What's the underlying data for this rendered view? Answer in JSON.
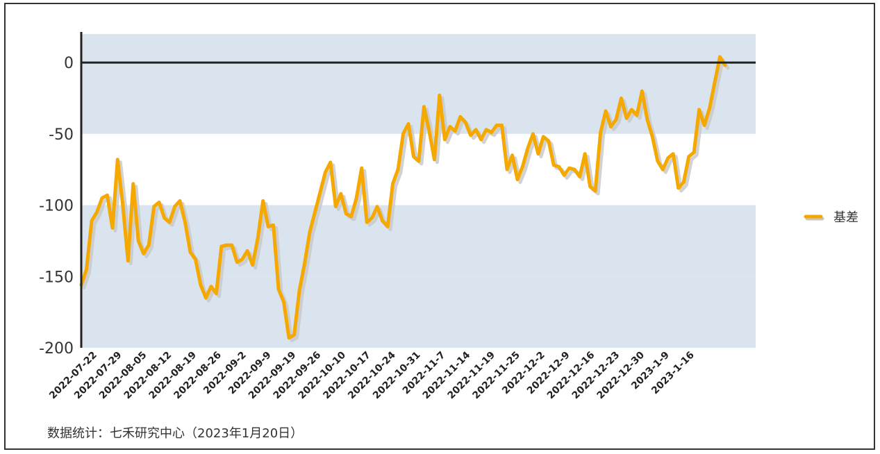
{
  "chart_data": {
    "type": "line",
    "title": "",
    "xlabel": "",
    "ylabel": "",
    "ylim": [
      -200,
      20
    ],
    "y_ticks": [
      0,
      -50,
      -100,
      -150,
      -200
    ],
    "y_tick_labels": [
      "0",
      "-50",
      "-100",
      "-150",
      "-200"
    ],
    "x_tick_labels": [
      "2022-07-22",
      "2022-07-29",
      "2022-08-05",
      "2022-08-12",
      "2022-08-19",
      "2022-08-26",
      "2022-09-2",
      "2022-09-9",
      "2022-09-19",
      "2022-09-26",
      "2022-10-10",
      "2022-10-17",
      "2022-10-24",
      "2022-10-31",
      "2022-11-7",
      "2022-11-14",
      "2022-11-19",
      "2022-11-25",
      "2022-12-2",
      "2022-12-9",
      "2022-12-16",
      "2022-12-23",
      "2022-12-30",
      "2023-1-9",
      "2023-1-16"
    ],
    "bands": [
      [
        -50,
        20
      ],
      [
        -150,
        -100
      ],
      [
        -200,
        -150
      ]
    ],
    "zero_line": true,
    "legend_position": "right",
    "colors": {
      "series": "#f5a800",
      "shadow": "#c7c7c7",
      "band": "#dae4ef",
      "axis": "#222222"
    },
    "series": [
      {
        "name": "基差",
        "values": [
          -156,
          -145,
          -111,
          -105,
          -95,
          -93,
          -116,
          -68,
          -100,
          -139,
          -85,
          -125,
          -134,
          -128,
          -101,
          -98,
          -109,
          -112,
          -101,
          -97,
          -112,
          -133,
          -138,
          -156,
          -165,
          -157,
          -162,
          -129,
          -128,
          -128,
          -140,
          -138,
          -132,
          -142,
          -123,
          -97,
          -115,
          -114,
          -159,
          -168,
          -193,
          -191,
          -160,
          -141,
          -119,
          -105,
          -91,
          -77,
          -70,
          -101,
          -92,
          -106,
          -108,
          -95,
          -74,
          -112,
          -109,
          -101,
          -111,
          -115,
          -85,
          -75,
          -50,
          -43,
          -66,
          -69,
          -31,
          -48,
          -68,
          -23,
          -54,
          -45,
          -48,
          -38,
          -42,
          -51,
          -47,
          -54,
          -47,
          -49,
          -44,
          -44,
          -75,
          -65,
          -82,
          -73,
          -60,
          -50,
          -64,
          -52,
          -55,
          -72,
          -73,
          -79,
          -74,
          -75,
          -80,
          -64,
          -87,
          -90,
          -49,
          -34,
          -45,
          -40,
          -25,
          -39,
          -33,
          -37,
          -20,
          -40,
          -52,
          -69,
          -75,
          -67,
          -64,
          -88,
          -84,
          -66,
          -63,
          -33,
          -44,
          -32,
          -14,
          4,
          -2
        ]
      }
    ],
    "source_note": "数据统计：七禾研究中心（2023年1月20日）"
  }
}
